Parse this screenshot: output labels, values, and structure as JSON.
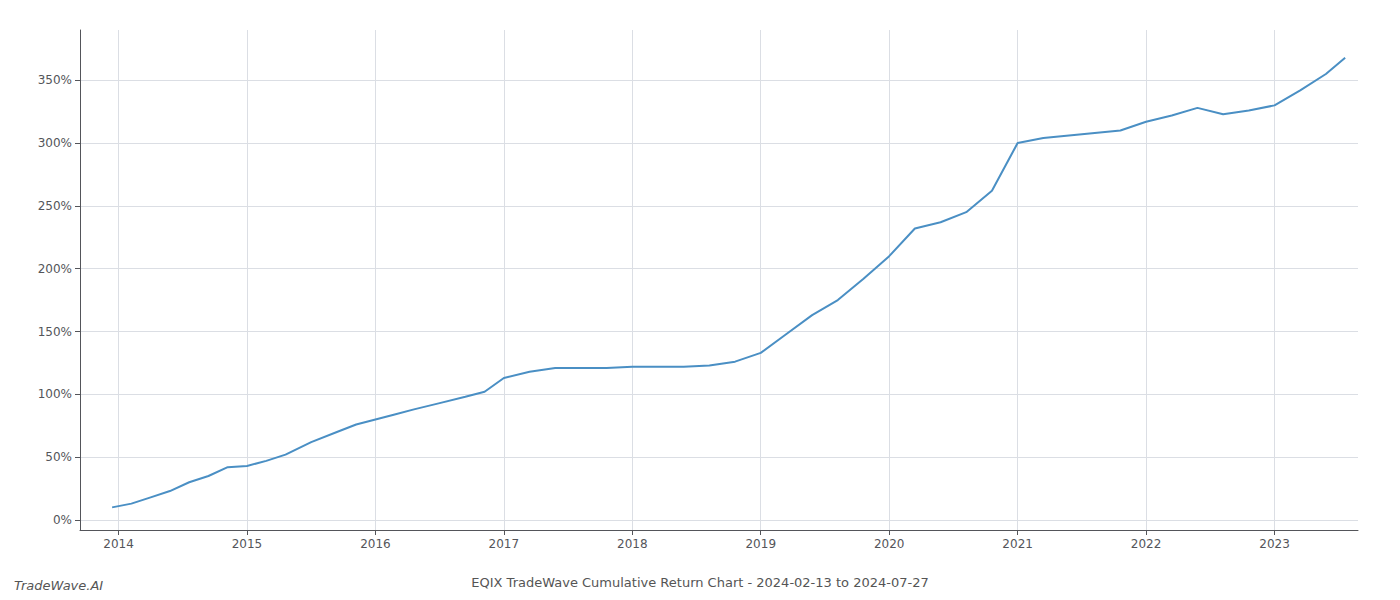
{
  "chart_data": {
    "type": "line",
    "title": "EQIX TradeWave Cumulative Return Chart - 2024-02-13 to 2024-07-27",
    "annotations": [
      "TradeWave.AI"
    ],
    "color": "#4a8fc4",
    "grid": true,
    "x": [
      2013.95,
      2014.1,
      2014.25,
      2014.4,
      2014.55,
      2014.7,
      2014.85,
      2015.0,
      2015.15,
      2015.3,
      2015.5,
      2015.7,
      2015.85,
      2016.0,
      2016.15,
      2016.3,
      2016.5,
      2016.7,
      2016.85,
      2017.0,
      2017.2,
      2017.4,
      2017.6,
      2017.8,
      2018.0,
      2018.2,
      2018.4,
      2018.6,
      2018.8,
      2019.0,
      2019.2,
      2019.4,
      2019.6,
      2019.8,
      2020.0,
      2020.2,
      2020.4,
      2020.6,
      2020.8,
      2021.0,
      2021.2,
      2021.4,
      2021.6,
      2021.8,
      2022.0,
      2022.2,
      2022.4,
      2022.6,
      2022.8,
      2023.0,
      2023.2,
      2023.4,
      2023.55
    ],
    "values": [
      10,
      13,
      18,
      23,
      30,
      35,
      42,
      43,
      47,
      52,
      62,
      70,
      76,
      80,
      84,
      88,
      93,
      98,
      102,
      113,
      118,
      121,
      121,
      121,
      122,
      122,
      122,
      123,
      126,
      133,
      148,
      163,
      175,
      192,
      210,
      232,
      237,
      245,
      262,
      300,
      304,
      306,
      308,
      310,
      317,
      322,
      328,
      323,
      326,
      330,
      342,
      355,
      368
    ],
    "xlim": [
      2013.7,
      2023.65
    ],
    "xticks": [
      2014,
      2015,
      2016,
      2017,
      2018,
      2019,
      2020,
      2021,
      2022,
      2023
    ],
    "ylim": [
      -8,
      390
    ],
    "yticks": [
      {
        "value": 0,
        "label": "0%"
      },
      {
        "value": 50,
        "label": "50%"
      },
      {
        "value": 100,
        "label": "100%"
      },
      {
        "value": 150,
        "label": "150%"
      },
      {
        "value": 200,
        "label": "200%"
      },
      {
        "value": 250,
        "label": "250%"
      },
      {
        "value": 300,
        "label": "300%"
      },
      {
        "value": 350,
        "label": "350%"
      }
    ]
  }
}
